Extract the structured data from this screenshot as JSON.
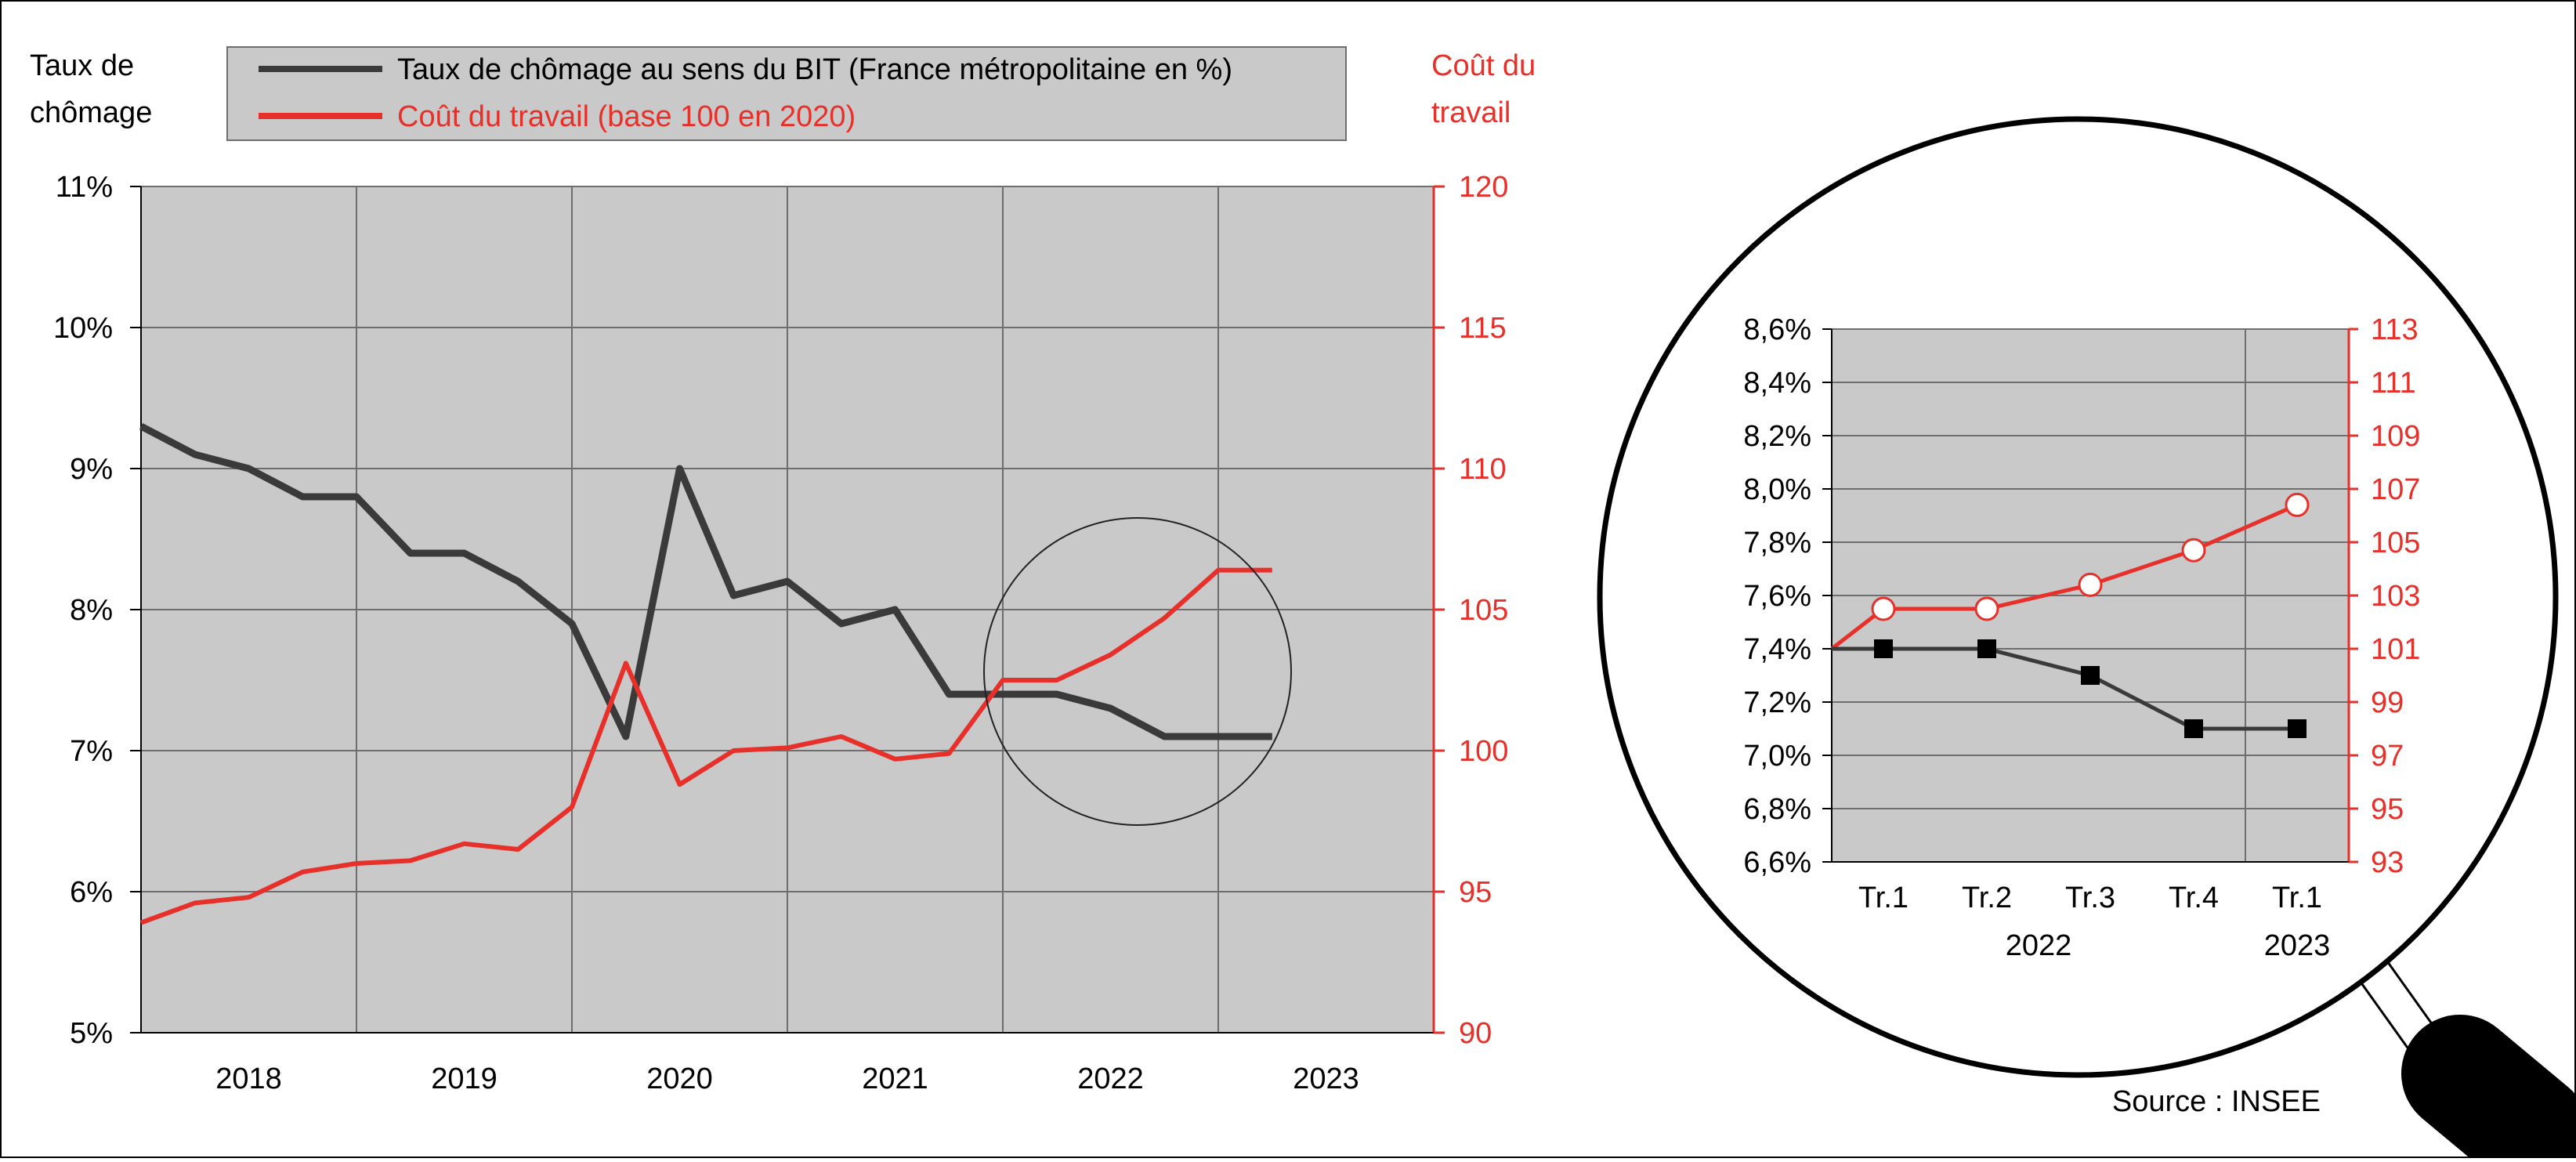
{
  "labels": {
    "left_axis_title": [
      "Taux de",
      "chômage"
    ],
    "right_axis_title": [
      "Coût du",
      "travail"
    ],
    "source": "Source : INSEE"
  },
  "colors": {
    "unemployment": "#3a3a3a",
    "labour_cost": "#e8302a",
    "plot_bg": "#c9c9c9",
    "grid": "#6e6e6e",
    "right_axis_text": "#e8302a"
  },
  "chart_data": [
    {
      "type": "line",
      "x_tick_labels": [
        "2018",
        "2019",
        "2020",
        "2021",
        "2022",
        "2023"
      ],
      "legend": {
        "placement": "top",
        "entries": [
          "Taux de chômage au sens du BIT (France métropolitaine en %)",
          "Coût du travail (base 100 en 2020)"
        ]
      },
      "y_left": {
        "ticks": [
          "5%",
          "6%",
          "7%",
          "8%",
          "9%",
          "10%",
          "11%"
        ],
        "range": [
          5,
          11
        ]
      },
      "y_right": {
        "ticks": [
          "90",
          "95",
          "100",
          "105",
          "110",
          "115",
          "120"
        ],
        "range": [
          90,
          120
        ]
      },
      "x_range": [
        2018,
        2024
      ],
      "grid": true,
      "series": [
        {
          "name": "Taux de chômage au sens du BIT (France métropolitaine en %)",
          "axis": "left",
          "x": [
            2018.0,
            2018.25,
            2018.5,
            2018.75,
            2019.0,
            2019.25,
            2019.5,
            2019.75,
            2020.0,
            2020.25,
            2020.5,
            2020.75,
            2021.0,
            2021.25,
            2021.5,
            2021.75,
            2022.0,
            2022.25,
            2022.5,
            2022.75,
            2023.0,
            2023.25
          ],
          "values": [
            9.3,
            9.1,
            9.0,
            8.8,
            8.8,
            8.4,
            8.4,
            8.2,
            7.9,
            7.1,
            9.0,
            8.1,
            8.2,
            7.9,
            8.0,
            7.4,
            7.4,
            7.4,
            7.3,
            7.1,
            7.1,
            7.1
          ]
        },
        {
          "name": "Coût du travail (base 100 en 2020)",
          "axis": "right",
          "x": [
            2018.0,
            2018.25,
            2018.5,
            2018.75,
            2019.0,
            2019.25,
            2019.5,
            2019.75,
            2020.0,
            2020.25,
            2020.5,
            2020.75,
            2021.0,
            2021.25,
            2021.5,
            2021.75,
            2022.0,
            2022.25,
            2022.5,
            2022.75,
            2023.0,
            2023.25
          ],
          "values": [
            93.9,
            94.6,
            94.8,
            95.7,
            96.0,
            96.1,
            96.7,
            96.5,
            98.0,
            103.1,
            98.8,
            100.0,
            100.1,
            100.5,
            99.7,
            99.9,
            102.5,
            102.5,
            103.4,
            104.7,
            106.4,
            106.4
          ]
        }
      ]
    },
    {
      "type": "line",
      "categories": [
        "Tr.1",
        "Tr.2",
        "Tr.3",
        "Tr.4",
        "Tr.1"
      ],
      "group_labels": [
        "2022",
        "2023"
      ],
      "y_left": {
        "ticks": [
          "6,6%",
          "6,8%",
          "7,0%",
          "7,2%",
          "7,4%",
          "7,6%",
          "7,8%",
          "8,0%",
          "8,2%",
          "8,4%",
          "8,6%"
        ],
        "range": [
          6.6,
          8.6
        ]
      },
      "y_right": {
        "ticks": [
          "93",
          "95",
          "97",
          "99",
          "101",
          "103",
          "105",
          "107",
          "109",
          "111",
          "113"
        ],
        "range": [
          93,
          113
        ]
      },
      "grid": true,
      "series": [
        {
          "name": "Taux de chômage au sens du BIT (France métropolitaine en %)",
          "axis": "left",
          "values": [
            7.4,
            7.4,
            7.3,
            7.1,
            7.1
          ]
        },
        {
          "name": "Coût du travail (base 100 en 2020)",
          "axis": "right",
          "values": [
            102.5,
            102.5,
            103.4,
            104.7,
            106.4
          ]
        }
      ]
    }
  ]
}
